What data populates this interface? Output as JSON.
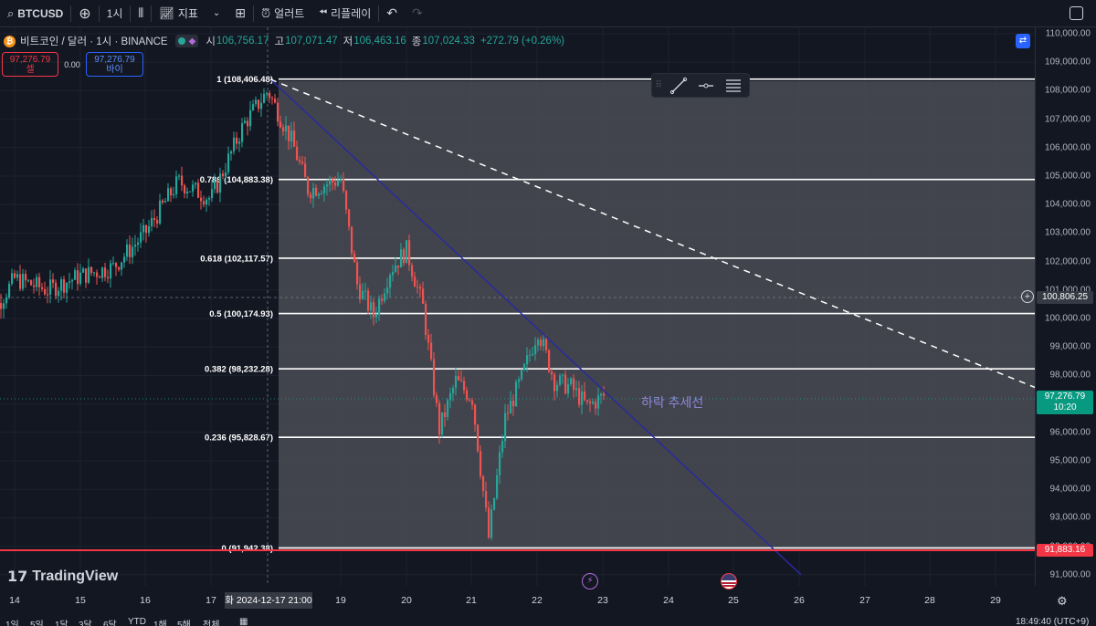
{
  "toolbar": {
    "symbol": "BTCUSD",
    "interval": "1시",
    "indicators_label": "지표",
    "alert_label": "얼러트",
    "replay_label": "리플레이"
  },
  "legend": {
    "title": "비트코인 / 달러 · 1시 · BINANCE",
    "coin_glyph": "₿",
    "open_key": "시",
    "open": "106,756.17",
    "high_key": "고",
    "high": "107,071.47",
    "low_key": "저",
    "low": "106,463.16",
    "close_key": "종",
    "close": "107,024.33",
    "change": "+272.79 (+0.26%)"
  },
  "orders": {
    "sell_price": "97,276.79",
    "sell_label": "셀",
    "spread": "0.00",
    "buy_price": "97,276.79",
    "buy_label": "바이"
  },
  "fib": {
    "levels": [
      {
        "label": "1 (108,406.48)",
        "price": 108406.48
      },
      {
        "label": "0.786 (104,883.38)",
        "price": 104883.38
      },
      {
        "label": "0.618 (102,117.57)",
        "price": 102117.57
      },
      {
        "label": "0.5 (100,174.93)",
        "price": 100174.93
      },
      {
        "label": "0.382 (98,232.28)",
        "price": 98232.28
      },
      {
        "label": "0.236 (95,828.67)",
        "price": 95828.67
      },
      {
        "label": "0 (91,942.38)",
        "price": 91942.38
      }
    ]
  },
  "annotation": "하락 추세선",
  "price_axis": {
    "ticks": [
      "110,000.00",
      "109,000.00",
      "108,000.00",
      "107,000.00",
      "106,000.00",
      "105,000.00",
      "104,000.00",
      "103,000.00",
      "102,000.00",
      "101,000.00",
      "100,000.00",
      "99,000.00",
      "98,000.00",
      "97,000.00",
      "96,000.00",
      "95,000.00",
      "94,000.00",
      "93,000.00",
      "92,000.00",
      "91,000.00"
    ],
    "crosshair_price": "100,806.25",
    "last_price": "97,276.79",
    "countdown": "10:20",
    "alert_price": "91,883.16"
  },
  "time_axis": {
    "ticks": [
      "14",
      "15",
      "16",
      "17",
      "19",
      "20",
      "21",
      "22",
      "23",
      "24",
      "25",
      "26",
      "27",
      "28",
      "29"
    ],
    "cursor_label": "화 2024-12-17   21:00"
  },
  "range_bar": {
    "items": [
      "1일",
      "5일",
      "1달",
      "3달",
      "6달",
      "YTD",
      "1해",
      "5해",
      "전체"
    ],
    "clock": "18:49:40 (UTC+9)"
  },
  "brand": "TradingView",
  "colors": {
    "background": "#131722",
    "up": "#26a69a",
    "down": "#ef5350",
    "trendline": "#2a2a9c",
    "alert": "#f23645",
    "fib_line": "#ffffff"
  },
  "chart_data": {
    "type": "candlestick",
    "title": "비트코인 / 달러 · 1시 · BINANCE",
    "x_range": [
      "2024-12-13",
      "2024-12-29"
    ],
    "ylim": [
      90800,
      110300
    ],
    "y_scale": "linear",
    "grid": true,
    "close_path": [
      [
        "12-13 12:00",
        99600
      ],
      [
        "12-14 00:00",
        101400
      ],
      [
        "12-14 12:00",
        101000
      ],
      [
        "12-15 00:00",
        101500
      ],
      [
        "12-15 12:00",
        101800
      ],
      [
        "12-16 00:00",
        103000
      ],
      [
        "12-16 12:00",
        104800
      ],
      [
        "12-17 00:00",
        104200
      ],
      [
        "12-17 12:00",
        106800
      ],
      [
        "12-17 21:00",
        108000
      ],
      [
        "12-18 06:00",
        106200
      ],
      [
        "12-18 12:00",
        104500
      ],
      [
        "12-18 18:00",
        104700
      ],
      [
        "12-19 00:00",
        104900
      ],
      [
        "12-19 06:00",
        101200
      ],
      [
        "12-19 12:00",
        100100
      ],
      [
        "12-19 18:00",
        101700
      ],
      [
        "12-20 00:00",
        102400
      ],
      [
        "12-20 06:00",
        100400
      ],
      [
        "12-20 12:00",
        96100
      ],
      [
        "12-20 18:00",
        97800
      ],
      [
        "12-21 00:00",
        97200
      ],
      [
        "12-21 06:00",
        92300
      ],
      [
        "12-21 12:00",
        96500
      ],
      [
        "12-21 18:00",
        97900
      ],
      [
        "12-22 00:00",
        99600
      ],
      [
        "12-22 06:00",
        97800
      ],
      [
        "12-22 12:00",
        97600
      ],
      [
        "12-22 18:00",
        96900
      ],
      [
        "12-23 00:00",
        97277
      ]
    ],
    "trendline_solid": {
      "from": [
        "12-17 22:00",
        108400
      ],
      "to": [
        "12-26 00:00",
        91000
      ]
    },
    "trendline_dashed": {
      "from": [
        "12-17 22:00",
        108400
      ],
      "to": [
        "12-29 18:00",
        97400
      ]
    }
  }
}
